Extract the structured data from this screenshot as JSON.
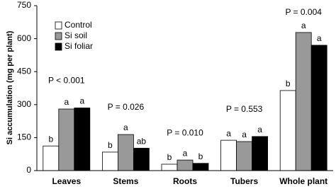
{
  "chart_data": {
    "type": "bar",
    "y_label": "Si accumulation (mg per plant)",
    "categories": [
      "Leaves",
      "Stems",
      "Roots",
      "Tubers",
      "Whole plant"
    ],
    "p_values": [
      "P < 0.001",
      "P = 0.026",
      "P = 0.010",
      "P = 0.553",
      "P = 0.004"
    ],
    "series": [
      {
        "name": "Control",
        "color": "#ffffff",
        "values": [
          112,
          84,
          29,
          138,
          364
        ],
        "letters": [
          "b",
          "b",
          "b",
          "a",
          "b"
        ]
      },
      {
        "name": "Si soil",
        "color": "#999999",
        "values": [
          280,
          164,
          48,
          132,
          628
        ],
        "letters": [
          "a",
          "a",
          "a",
          "a",
          "a"
        ]
      },
      {
        "name": "Si foliar",
        "color": "#000000",
        "values": [
          285,
          102,
          33,
          155,
          570
        ],
        "letters": [
          "a",
          "ab",
          "b",
          "a",
          "a"
        ]
      }
    ],
    "ylim": [
      0,
      750
    ],
    "yticks": [
      0,
      150,
      300,
      450,
      600,
      750
    ],
    "legend": "upper-left"
  }
}
